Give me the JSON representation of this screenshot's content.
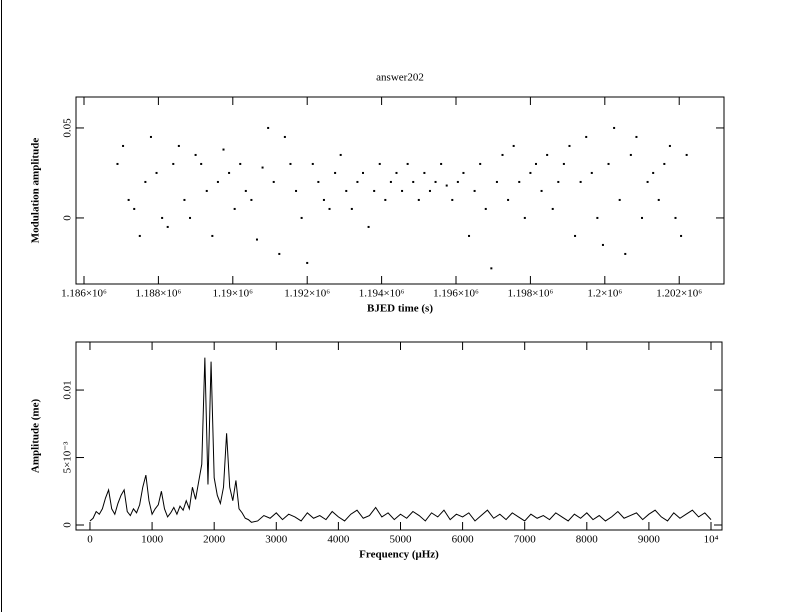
{
  "chart_data": [
    {
      "type": "scatter",
      "title": "answer202",
      "xlabel": "BJED time (s)",
      "ylabel": "Modulation amplitude",
      "color": "#000000",
      "x": [
        1186900,
        1187050,
        1187200,
        1187350,
        1187500,
        1187650,
        1187800,
        1187950,
        1188100,
        1188250,
        1188400,
        1188550,
        1188700,
        1188850,
        1189000,
        1189150,
        1189300,
        1189450,
        1189600,
        1189750,
        1189900,
        1190050,
        1190200,
        1190350,
        1190500,
        1190650,
        1190800,
        1190950,
        1191100,
        1191250,
        1191400,
        1191550,
        1191700,
        1191850,
        1192000,
        1192150,
        1192300,
        1192450,
        1192600,
        1192750,
        1192900,
        1193050,
        1193200,
        1193350,
        1193500,
        1193650,
        1193800,
        1193950,
        1194100,
        1194250,
        1194400,
        1194550,
        1194700,
        1194850,
        1195000,
        1195150,
        1195300,
        1195450,
        1195600,
        1195750,
        1195900,
        1196050,
        1196200,
        1196350,
        1196500,
        1196650,
        1196800,
        1196950,
        1197100,
        1197250,
        1197400,
        1197550,
        1197700,
        1197850,
        1198000,
        1198150,
        1198300,
        1198450,
        1198600,
        1198750,
        1198900,
        1199050,
        1199200,
        1199350,
        1199500,
        1199650,
        1199800,
        1199950,
        1200100,
        1200250,
        1200400,
        1200550,
        1200700,
        1200850,
        1201000,
        1201150,
        1201300,
        1201450,
        1201600,
        1201750,
        1201900,
        1202050,
        1202200
      ],
      "values": [
        0.03,
        0.04,
        0.01,
        0.005,
        -0.01,
        0.02,
        0.045,
        0.025,
        0.0,
        -0.005,
        0.03,
        0.04,
        0.01,
        0.0,
        0.035,
        0.03,
        0.015,
        -0.01,
        0.02,
        0.038,
        0.025,
        0.005,
        0.03,
        0.015,
        0.01,
        -0.012,
        0.028,
        0.05,
        0.02,
        -0.02,
        0.045,
        0.03,
        0.015,
        0.0,
        -0.025,
        0.03,
        0.02,
        0.01,
        0.005,
        0.025,
        0.035,
        0.015,
        0.005,
        0.02,
        0.025,
        -0.005,
        0.015,
        0.03,
        0.01,
        0.02,
        0.025,
        0.015,
        0.03,
        0.02,
        0.01,
        0.025,
        0.015,
        0.02,
        0.03,
        0.018,
        0.01,
        0.02,
        0.025,
        -0.01,
        0.015,
        0.03,
        0.005,
        -0.028,
        0.02,
        0.035,
        0.01,
        0.04,
        0.02,
        0.0,
        0.025,
        0.03,
        0.015,
        0.035,
        0.005,
        0.02,
        0.03,
        0.04,
        -0.01,
        0.02,
        0.045,
        0.025,
        0.0,
        -0.015,
        0.03,
        0.05,
        0.01,
        -0.02,
        0.035,
        0.045,
        0.0,
        0.02,
        0.025,
        0.01,
        0.03,
        0.04,
        0.0,
        -0.01,
        0.035
      ],
      "xlim": [
        1185785,
        1203204
      ],
      "ylim": [
        -0.0367,
        0.0672
      ],
      "xticks": [
        {
          "value": 1186000,
          "label": "1.186×10⁶"
        },
        {
          "value": 1188000,
          "label": "1.188×10⁶"
        },
        {
          "value": 1190000,
          "label": "1.19×10⁶"
        },
        {
          "value": 1192000,
          "label": "1.192×10⁶"
        },
        {
          "value": 1194000,
          "label": "1.194×10⁶"
        },
        {
          "value": 1196000,
          "label": "1.196×10⁶"
        },
        {
          "value": 1198000,
          "label": "1.198×10⁶"
        },
        {
          "value": 1200000,
          "label": "1.2×10⁶"
        },
        {
          "value": 1202000,
          "label": "1.202×10⁶"
        }
      ],
      "yticks": [
        0,
        0.05
      ]
    },
    {
      "type": "line",
      "xlabel": "Frequency (μHz)",
      "ylabel": "Amplitude (me)",
      "color": "#000000",
      "x": [
        0,
        50,
        100,
        150,
        200,
        250,
        300,
        350,
        400,
        450,
        500,
        550,
        600,
        650,
        700,
        750,
        800,
        850,
        900,
        950,
        1000,
        1050,
        1100,
        1150,
        1200,
        1250,
        1300,
        1350,
        1400,
        1450,
        1500,
        1550,
        1600,
        1650,
        1700,
        1750,
        1800,
        1850,
        1900,
        1950,
        2000,
        2050,
        2100,
        2150,
        2200,
        2250,
        2300,
        2350,
        2400,
        2450,
        2500,
        2550,
        2600,
        2700,
        2800,
        2900,
        3000,
        3100,
        3200,
        3300,
        3400,
        3500,
        3600,
        3700,
        3800,
        3900,
        4000,
        4100,
        4200,
        4300,
        4400,
        4500,
        4600,
        4700,
        4800,
        4900,
        5000,
        5100,
        5200,
        5300,
        5400,
        5500,
        5600,
        5700,
        5800,
        5900,
        6000,
        6100,
        6200,
        6300,
        6400,
        6500,
        6600,
        6700,
        6800,
        6900,
        7000,
        7100,
        7200,
        7300,
        7400,
        7500,
        7600,
        7700,
        7800,
        7900,
        8000,
        8100,
        8200,
        8300,
        8400,
        8500,
        8600,
        8700,
        8800,
        8900,
        9000,
        9100,
        9200,
        9300,
        9400,
        9500,
        9600,
        9700,
        9800,
        9900,
        10000
      ],
      "values": [
        0.0003,
        0.0005,
        0.001,
        0.0008,
        0.0012,
        0.002,
        0.0026,
        0.0012,
        0.0008,
        0.0016,
        0.0022,
        0.0026,
        0.001,
        0.0007,
        0.0012,
        0.0009,
        0.0015,
        0.0028,
        0.0037,
        0.0018,
        0.0008,
        0.0012,
        0.0015,
        0.0025,
        0.0012,
        0.0006,
        0.0009,
        0.0013,
        0.0008,
        0.0014,
        0.0011,
        0.0018,
        0.0012,
        0.0028,
        0.0019,
        0.0032,
        0.0045,
        0.0124,
        0.003,
        0.0121,
        0.0035,
        0.0022,
        0.0016,
        0.0028,
        0.0068,
        0.0028,
        0.0018,
        0.0033,
        0.0012,
        0.0009,
        0.0005,
        0.0004,
        0.0002,
        0.0003,
        0.0007,
        0.0005,
        0.0009,
        0.0004,
        0.0008,
        0.0006,
        0.0003,
        0.0009,
        0.0005,
        0.0007,
        0.0004,
        0.001,
        0.0006,
        0.0003,
        0.0008,
        0.0011,
        0.0005,
        0.0007,
        0.0013,
        0.0006,
        0.0009,
        0.0004,
        0.0008,
        0.0005,
        0.001,
        0.0007,
        0.0003,
        0.0009,
        0.0006,
        0.0011,
        0.0004,
        0.0008,
        0.0006,
        0.0009,
        0.0003,
        0.0007,
        0.0011,
        0.0005,
        0.0008,
        0.0004,
        0.0009,
        0.0006,
        0.0003,
        0.0008,
        0.0005,
        0.0007,
        0.0004,
        0.0009,
        0.0006,
        0.0003,
        0.0008,
        0.0005,
        0.0009,
        0.0004,
        0.0007,
        0.0003,
        0.0006,
        0.001,
        0.0005,
        0.0007,
        0.0009,
        0.0004,
        0.0008,
        0.0011,
        0.0006,
        0.0003,
        0.0009,
        0.0005,
        0.0008,
        0.0011,
        0.0006,
        0.0009,
        0.0004
      ],
      "xlim": [
        -225,
        10177
      ],
      "ylim": [
        -0.00037,
        0.01356
      ],
      "xticks": [
        0,
        1000,
        2000,
        3000,
        4000,
        5000,
        6000,
        7000,
        8000,
        9000,
        {
          "value": 10000,
          "label": "10⁴"
        }
      ],
      "yticks": [
        0,
        {
          "value": 0.005,
          "label": "5×10⁻³"
        },
        0.01
      ]
    }
  ]
}
